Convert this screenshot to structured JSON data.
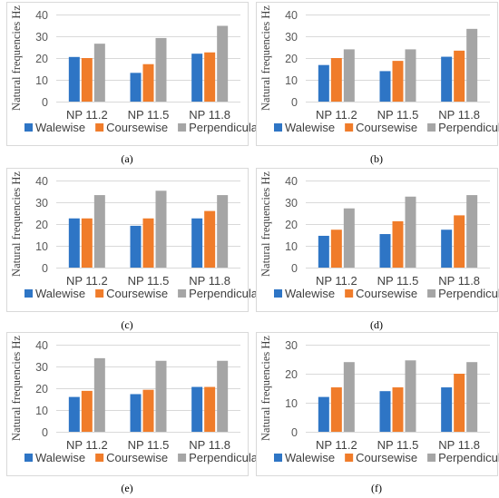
{
  "colors": {
    "walewise": "#2e75c5",
    "coursewise": "#f07c2a",
    "perpendicular": "#a5a5a5"
  },
  "chart_data": [
    {
      "type": "bar",
      "caption": "(a)",
      "ylabel": "Natural frequencies Hz",
      "ylim": [
        0,
        40
      ],
      "yticks": [
        "0",
        "10",
        "20",
        "30",
        "40"
      ],
      "categories": [
        "NP 11.2",
        "NP 11.5",
        "NP 11.8"
      ],
      "series": [
        {
          "name": "Walewise",
          "values": [
            20.5,
            13.2,
            22.0
          ]
        },
        {
          "name": "Coursewise",
          "values": [
            20.0,
            17.2,
            22.6
          ]
        },
        {
          "name": "Perpendicular",
          "values": [
            26.6,
            29.2,
            34.8
          ]
        }
      ],
      "legend": "bottom",
      "grid": true
    },
    {
      "type": "bar",
      "caption": "(b)",
      "ylabel": "Natural frequencies Hz",
      "ylim": [
        0,
        40
      ],
      "yticks": [
        "0",
        "10",
        "20",
        "30",
        "40"
      ],
      "categories": [
        "NP 11.2",
        "NP 11.5",
        "NP 11.8"
      ],
      "series": [
        {
          "name": "Walewise",
          "values": [
            16.8,
            14.0,
            20.6
          ]
        },
        {
          "name": "Coursewise",
          "values": [
            20.0,
            18.7,
            23.4
          ]
        },
        {
          "name": "Perpendicular",
          "values": [
            24.0,
            24.0,
            33.4
          ]
        }
      ],
      "legend": "bottom",
      "grid": true
    },
    {
      "type": "bar",
      "caption": "(c)",
      "ylabel": "Natural frequencies Hz",
      "ylim": [
        0,
        40
      ],
      "yticks": [
        "0",
        "10",
        "20",
        "30",
        "40"
      ],
      "categories": [
        "NP 11.2",
        "NP 11.5",
        "NP 11.8"
      ],
      "series": [
        {
          "name": "Walewise",
          "values": [
            22.6,
            19.2,
            22.6
          ]
        },
        {
          "name": "Coursewise",
          "values": [
            22.6,
            22.6,
            26.0
          ]
        },
        {
          "name": "Perpendicular",
          "values": [
            33.3,
            35.3,
            33.3
          ]
        }
      ],
      "legend": "bottom",
      "grid": true
    },
    {
      "type": "bar",
      "caption": "(d)",
      "ylabel": "Natural frequencies Hz",
      "ylim": [
        0,
        40
      ],
      "yticks": [
        "0",
        "10",
        "20",
        "30",
        "40"
      ],
      "categories": [
        "NP 11.2",
        "NP 11.5",
        "NP 11.8"
      ],
      "series": [
        {
          "name": "Walewise",
          "values": [
            14.6,
            15.4,
            17.4
          ]
        },
        {
          "name": "Coursewise",
          "values": [
            17.4,
            21.3,
            24.0
          ]
        },
        {
          "name": "Perpendicular",
          "values": [
            27.2,
            32.6,
            33.3
          ]
        }
      ],
      "legend": "bottom",
      "grid": true
    },
    {
      "type": "bar",
      "caption": "(e)",
      "ylabel": "Natural frequencies Hz",
      "ylim": [
        0,
        40
      ],
      "yticks": [
        "0",
        "10",
        "20",
        "30",
        "40"
      ],
      "categories": [
        "NP 11.2",
        "NP 11.5",
        "NP 11.8"
      ],
      "series": [
        {
          "name": "Walewise",
          "values": [
            16.0,
            17.3,
            20.6
          ]
        },
        {
          "name": "Coursewise",
          "values": [
            18.8,
            19.3,
            20.6
          ]
        },
        {
          "name": "Perpendicular",
          "values": [
            33.8,
            32.6,
            32.6
          ]
        }
      ],
      "legend": "bottom",
      "grid": true
    },
    {
      "type": "bar",
      "caption": "(f)",
      "ylabel": "Natural frequencies Hz",
      "ylim": [
        0,
        30
      ],
      "yticks": [
        "0",
        "10",
        "20",
        "30"
      ],
      "categories": [
        "NP 11.2",
        "NP 11.5",
        "NP 11.8"
      ],
      "series": [
        {
          "name": "Walewise",
          "values": [
            12.0,
            14.0,
            15.3
          ]
        },
        {
          "name": "Coursewise",
          "values": [
            15.3,
            15.3,
            20.0
          ]
        },
        {
          "name": "Perpendicular",
          "values": [
            24.0,
            24.6,
            24.0
          ]
        }
      ],
      "legend": "bottom",
      "grid": true
    }
  ]
}
